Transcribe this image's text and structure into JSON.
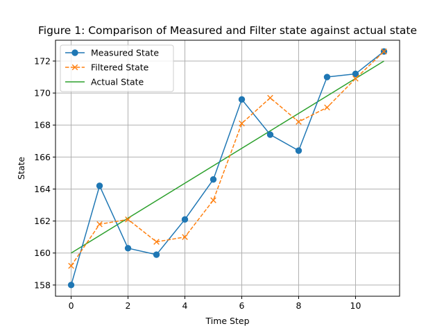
{
  "chart_data": {
    "type": "line",
    "title": "Figure 1: Comparison of Measured and Filter state against actual state",
    "xlabel": "Time Step",
    "ylabel": "State",
    "xlim": [
      -0.55,
      11.55
    ],
    "ylim": [
      157.3,
      173.3
    ],
    "xticks": [
      0,
      2,
      4,
      6,
      8,
      10
    ],
    "yticks": [
      158,
      160,
      162,
      164,
      166,
      168,
      170,
      172
    ],
    "grid": true,
    "legend_position": "top-left",
    "series": [
      {
        "name": "Measured State",
        "color": "#1f77b4",
        "line_style": "solid",
        "marker": "circle",
        "x": [
          0,
          1,
          2,
          3,
          4,
          5,
          6,
          7,
          8,
          9,
          10,
          11
        ],
        "y": [
          158.0,
          164.2,
          160.3,
          159.9,
          162.1,
          164.6,
          169.6,
          167.4,
          166.4,
          171.0,
          171.2,
          172.6
        ]
      },
      {
        "name": "Filtered State",
        "color": "#ff7f0e",
        "line_style": "dashed",
        "marker": "x",
        "x": [
          0,
          1,
          2,
          3,
          4,
          5,
          6,
          7,
          8,
          9,
          10,
          11
        ],
        "y": [
          159.2,
          161.8,
          162.1,
          160.7,
          161.0,
          163.3,
          168.1,
          169.7,
          168.2,
          169.1,
          170.9,
          172.6
        ]
      },
      {
        "name": "Actual State",
        "color": "#2ca02c",
        "line_style": "solid",
        "marker": "none",
        "x": [
          0,
          11
        ],
        "y": [
          160.0,
          172.0
        ]
      }
    ]
  }
}
